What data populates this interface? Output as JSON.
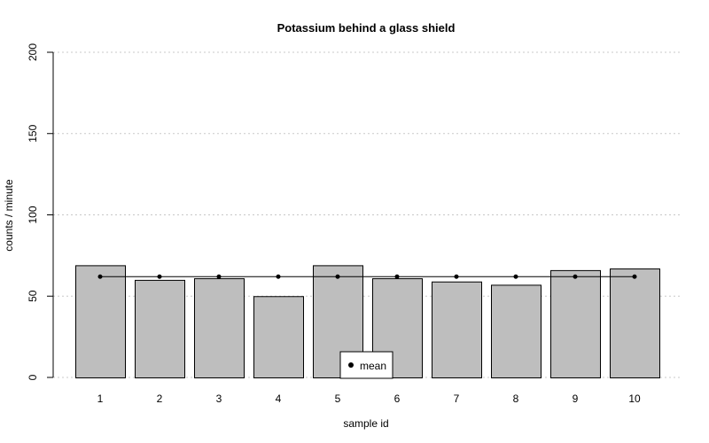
{
  "chart_data": {
    "type": "bar",
    "title": "Potassium behind a glass shield",
    "xlabel": "sample id",
    "ylabel": "counts / minute",
    "categories": [
      "1",
      "2",
      "3",
      "4",
      "5",
      "6",
      "7",
      "8",
      "9",
      "10"
    ],
    "values": [
      69,
      60,
      61,
      50,
      69,
      61,
      59,
      57,
      66,
      67
    ],
    "mean": 62,
    "ylim": [
      0,
      200
    ],
    "yticks": [
      0,
      50,
      100,
      150,
      200
    ],
    "grid": "horizontal dotted",
    "legend": {
      "position": "bottom-center",
      "entries": [
        "mean"
      ]
    },
    "colors": {
      "bar_fill": "#bebebe",
      "bar_stroke": "#000000",
      "mean_line": "#000000",
      "grid": "#c8c8c8"
    }
  }
}
